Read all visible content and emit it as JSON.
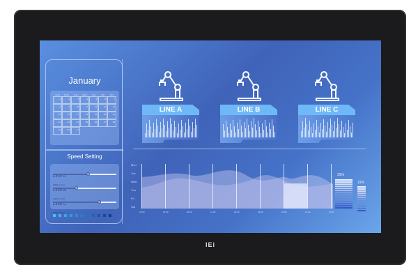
{
  "brand": "IEi",
  "calendar": {
    "month": "January",
    "weekdays": [
      "SUN",
      "MON",
      "TUE",
      "WED",
      "THU",
      "FRI",
      "SAT"
    ],
    "days": [
      "1",
      "2",
      "3",
      "4",
      "5",
      "6",
      "7",
      "8",
      "9",
      "10",
      "11",
      "12",
      "13",
      "14",
      "15",
      "16",
      "17",
      "18",
      "19",
      "20",
      "21",
      "22",
      "23",
      "24",
      "25",
      "26",
      "27",
      "28",
      "29",
      "30",
      "31"
    ]
  },
  "speed": {
    "title": "Speed Setting",
    "lines": [
      {
        "label": "LINE A",
        "value": "(3000 mm/s)",
        "level": 0.55
      },
      {
        "label": "LINE B",
        "value": "(1600 mm/s)",
        "level": 0.37
      },
      {
        "label": "LINE C",
        "value": "(4500 mm/s)",
        "level": 0.73
      }
    ]
  },
  "production_lines": [
    {
      "label": "LINE A",
      "icon": "robot-arm-icon"
    },
    {
      "label": "LINE B",
      "icon": "robot-arm-icon"
    },
    {
      "label": "LINE C",
      "icon": "robot-arm-icon"
    }
  ],
  "chart": {
    "y_labels": [
      "Mon",
      "Tue",
      "Wed",
      "Thu",
      "Fri",
      "Sat"
    ],
    "x_labels": [
      "04:00",
      "15:00",
      "01:00",
      "11:00",
      "22:00",
      "04:00",
      "15:00",
      "01:00",
      "11:00"
    ]
  },
  "levels": [
    {
      "value": "25%",
      "fraction": 0.25
    },
    {
      "value": "19%",
      "fraction": 0.19
    }
  ],
  "colors": {
    "screen": "#4a6fc4",
    "accent": "#6fb8f7",
    "bezel": "#1b1b1d"
  }
}
